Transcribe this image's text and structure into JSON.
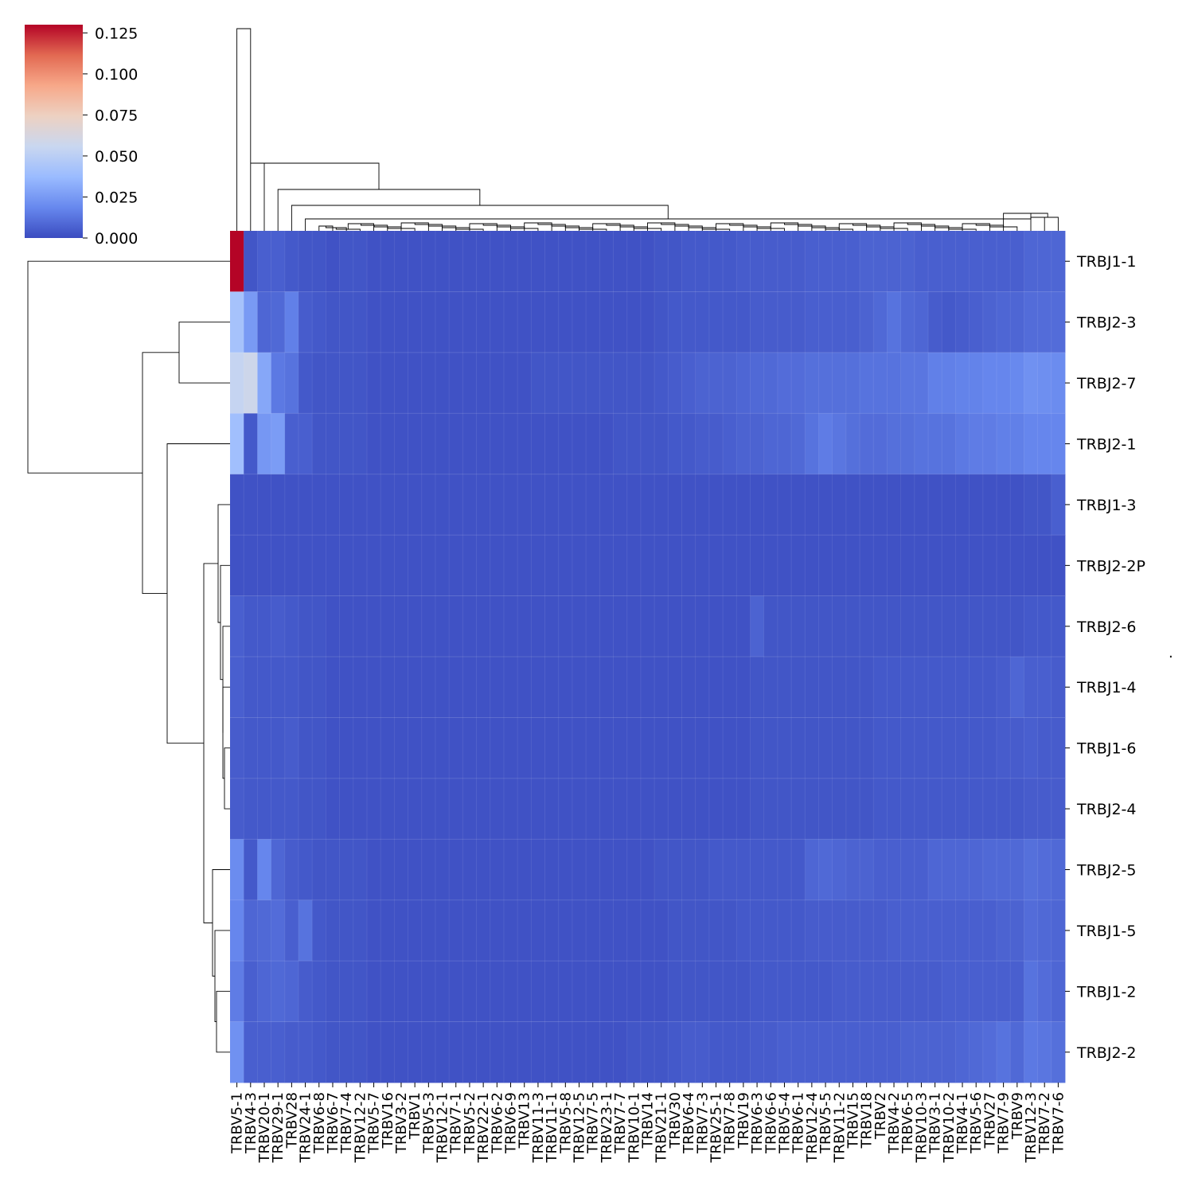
{
  "chart_data": {
    "type": "heatmap",
    "title": "",
    "xlabel": "",
    "ylabel": "",
    "colormap": "coolwarm",
    "colormap_stops": [
      "#3b4cc0",
      "#6788ee",
      "#9abbff",
      "#c9d7f0",
      "#edd1c2",
      "#f7a889",
      "#e26952",
      "#b40426"
    ],
    "vmin": 0.0,
    "vmax": 0.13,
    "colorbar_ticks": [
      "0.000",
      "0.025",
      "0.050",
      "0.075",
      "0.100",
      "0.125"
    ],
    "colorbar_tick_values": [
      0,
      0.025,
      0.05,
      0.075,
      0.1,
      0.125
    ],
    "columns": [
      "TRBV5-1",
      "TRBV4-3",
      "TRBV20-1",
      "TRBV29-1",
      "TRBV28",
      "TRBV24-1",
      "TRBV6-8",
      "TRBV6-7",
      "TRBV7-4",
      "TRBV12-2",
      "TRBV5-7",
      "TRBV16",
      "TRBV3-2",
      "TRBV1",
      "TRBV5-3",
      "TRBV12-1",
      "TRBV7-1",
      "TRBV5-2",
      "TRBV22-1",
      "TRBV6-2",
      "TRBV6-9",
      "TRBV13",
      "TRBV11-3",
      "TRBV11-1",
      "TRBV5-8",
      "TRBV12-5",
      "TRBV7-5",
      "TRBV23-1",
      "TRBV7-7",
      "TRBV10-1",
      "TRBV14",
      "TRBV21-1",
      "TRBV30",
      "TRBV6-4",
      "TRBV7-3",
      "TRBV25-1",
      "TRBV7-8",
      "TRBV19",
      "TRBV6-3",
      "TRBV6-6",
      "TRBV5-4",
      "TRBV6-1",
      "TRBV12-4",
      "TRBV5-5",
      "TRBV11-2",
      "TRBV15",
      "TRBV18",
      "TRBV2",
      "TRBV4-2",
      "TRBV6-5",
      "TRBV10-3",
      "TRBV3-1",
      "TRBV10-2",
      "TRBV4-1",
      "TRBV5-6",
      "TRBV27",
      "TRBV7-9",
      "TRBV9",
      "TRBV12-3",
      "TRBV7-2",
      "TRBV7-6"
    ],
    "rows": [
      "TRBJ1-1",
      "TRBJ2-3",
      "TRBJ2-7",
      "TRBJ2-1",
      "TRBJ1-3",
      "TRBJ2-2P",
      "TRBJ2-6",
      "TRBJ1-4",
      "TRBJ1-6",
      "TRBJ2-4",
      "TRBJ2-5",
      "TRBJ1-5",
      "TRBJ1-2",
      "TRBJ2-2"
    ],
    "values": [
      [
        0.13,
        0.003,
        0.006,
        0.006,
        0.004,
        0.003,
        0.003,
        0.002,
        0.003,
        0.003,
        0.002,
        0.002,
        0.002,
        0.002,
        0.002,
        0.002,
        0.002,
        0.002,
        0.002,
        0.002,
        0.002,
        0.002,
        0.002,
        0.002,
        0.002,
        0.002,
        0.002,
        0.002,
        0.002,
        0.002,
        0.002,
        0.003,
        0.003,
        0.004,
        0.004,
        0.004,
        0.004,
        0.005,
        0.005,
        0.005,
        0.005,
        0.005,
        0.006,
        0.006,
        0.006,
        0.006,
        0.007,
        0.007,
        0.007,
        0.007,
        0.006,
        0.006,
        0.006,
        0.006,
        0.006,
        0.006,
        0.006,
        0.006,
        0.008,
        0.008,
        0.008
      ],
      [
        0.042,
        0.025,
        0.008,
        0.009,
        0.016,
        0.005,
        0.004,
        0.003,
        0.003,
        0.003,
        0.002,
        0.002,
        0.002,
        0.002,
        0.002,
        0.002,
        0.002,
        0.002,
        0.002,
        0.002,
        0.002,
        0.002,
        0.002,
        0.002,
        0.002,
        0.002,
        0.002,
        0.002,
        0.002,
        0.002,
        0.002,
        0.003,
        0.004,
        0.004,
        0.004,
        0.004,
        0.004,
        0.004,
        0.005,
        0.005,
        0.005,
        0.005,
        0.006,
        0.006,
        0.006,
        0.006,
        0.007,
        0.009,
        0.012,
        0.009,
        0.008,
        0.005,
        0.004,
        0.005,
        0.006,
        0.007,
        0.008,
        0.008,
        0.01,
        0.01,
        0.01
      ],
      [
        0.054,
        0.058,
        0.03,
        0.014,
        0.012,
        0.004,
        0.003,
        0.003,
        0.003,
        0.003,
        0.002,
        0.002,
        0.002,
        0.002,
        0.002,
        0.002,
        0.002,
        0.002,
        0.002,
        0.002,
        0.002,
        0.002,
        0.003,
        0.003,
        0.003,
        0.003,
        0.003,
        0.003,
        0.003,
        0.003,
        0.003,
        0.004,
        0.005,
        0.006,
        0.007,
        0.007,
        0.007,
        0.008,
        0.009,
        0.009,
        0.01,
        0.01,
        0.011,
        0.011,
        0.011,
        0.011,
        0.012,
        0.012,
        0.012,
        0.013,
        0.013,
        0.016,
        0.016,
        0.017,
        0.017,
        0.018,
        0.018,
        0.019,
        0.022,
        0.021,
        0.02
      ],
      [
        0.04,
        0.004,
        0.024,
        0.026,
        0.006,
        0.006,
        0.003,
        0.003,
        0.003,
        0.003,
        0.002,
        0.002,
        0.002,
        0.002,
        0.002,
        0.002,
        0.002,
        0.002,
        0.002,
        0.002,
        0.002,
        0.002,
        0.002,
        0.002,
        0.002,
        0.002,
        0.002,
        0.002,
        0.003,
        0.003,
        0.003,
        0.003,
        0.004,
        0.004,
        0.005,
        0.005,
        0.006,
        0.007,
        0.007,
        0.008,
        0.008,
        0.009,
        0.012,
        0.015,
        0.013,
        0.011,
        0.01,
        0.01,
        0.011,
        0.011,
        0.012,
        0.012,
        0.012,
        0.014,
        0.015,
        0.015,
        0.016,
        0.016,
        0.018,
        0.018,
        0.018
      ],
      [
        0.002,
        0.002,
        0.002,
        0.002,
        0.002,
        0.002,
        0.002,
        0.002,
        0.002,
        0.002,
        0.002,
        0.002,
        0.002,
        0.002,
        0.002,
        0.002,
        0.002,
        0.002,
        0.002,
        0.002,
        0.002,
        0.002,
        0.002,
        0.002,
        0.002,
        0.002,
        0.002,
        0.002,
        0.002,
        0.002,
        0.002,
        0.002,
        0.002,
        0.002,
        0.002,
        0.002,
        0.002,
        0.002,
        0.002,
        0.002,
        0.002,
        0.002,
        0.002,
        0.002,
        0.002,
        0.002,
        0.002,
        0.002,
        0.002,
        0.002,
        0.002,
        0.002,
        0.002,
        0.002,
        0.002,
        0.002,
        0.002,
        0.002,
        0.003,
        0.003,
        0.006
      ],
      [
        0.002,
        0.002,
        0.002,
        0.002,
        0.002,
        0.002,
        0.002,
        0.002,
        0.002,
        0.002,
        0.002,
        0.002,
        0.002,
        0.002,
        0.002,
        0.002,
        0.002,
        0.002,
        0.002,
        0.002,
        0.002,
        0.002,
        0.002,
        0.002,
        0.002,
        0.002,
        0.002,
        0.002,
        0.002,
        0.002,
        0.002,
        0.002,
        0.002,
        0.002,
        0.002,
        0.002,
        0.002,
        0.002,
        0.002,
        0.002,
        0.002,
        0.002,
        0.002,
        0.002,
        0.002,
        0.002,
        0.002,
        0.002,
        0.002,
        0.002,
        0.002,
        0.002,
        0.002,
        0.002,
        0.002,
        0.002,
        0.002,
        0.002,
        0.002,
        0.002,
        0.002
      ],
      [
        0.006,
        0.004,
        0.004,
        0.005,
        0.004,
        0.003,
        0.003,
        0.002,
        0.002,
        0.002,
        0.002,
        0.002,
        0.002,
        0.002,
        0.002,
        0.002,
        0.002,
        0.002,
        0.002,
        0.002,
        0.002,
        0.002,
        0.002,
        0.002,
        0.002,
        0.002,
        0.002,
        0.002,
        0.002,
        0.002,
        0.002,
        0.002,
        0.002,
        0.002,
        0.002,
        0.002,
        0.002,
        0.002,
        0.007,
        0.003,
        0.003,
        0.003,
        0.003,
        0.003,
        0.003,
        0.003,
        0.003,
        0.003,
        0.003,
        0.003,
        0.003,
        0.003,
        0.003,
        0.003,
        0.003,
        0.003,
        0.003,
        0.003,
        0.004,
        0.004,
        0.004
      ],
      [
        0.006,
        0.004,
        0.004,
        0.004,
        0.004,
        0.003,
        0.003,
        0.002,
        0.002,
        0.002,
        0.002,
        0.002,
        0.002,
        0.002,
        0.002,
        0.002,
        0.002,
        0.002,
        0.002,
        0.002,
        0.002,
        0.002,
        0.002,
        0.002,
        0.002,
        0.002,
        0.002,
        0.002,
        0.002,
        0.002,
        0.002,
        0.002,
        0.002,
        0.002,
        0.002,
        0.002,
        0.002,
        0.002,
        0.003,
        0.003,
        0.003,
        0.003,
        0.003,
        0.003,
        0.003,
        0.003,
        0.003,
        0.004,
        0.004,
        0.004,
        0.004,
        0.004,
        0.004,
        0.004,
        0.004,
        0.004,
        0.005,
        0.008,
        0.006,
        0.006,
        0.005
      ],
      [
        0.005,
        0.004,
        0.004,
        0.004,
        0.005,
        0.003,
        0.003,
        0.002,
        0.002,
        0.002,
        0.002,
        0.002,
        0.002,
        0.002,
        0.002,
        0.002,
        0.002,
        0.002,
        0.002,
        0.002,
        0.002,
        0.002,
        0.002,
        0.002,
        0.002,
        0.002,
        0.002,
        0.002,
        0.002,
        0.002,
        0.002,
        0.002,
        0.002,
        0.002,
        0.002,
        0.002,
        0.002,
        0.002,
        0.003,
        0.003,
        0.003,
        0.003,
        0.003,
        0.003,
        0.003,
        0.003,
        0.003,
        0.004,
        0.004,
        0.004,
        0.004,
        0.004,
        0.004,
        0.004,
        0.004,
        0.004,
        0.005,
        0.005,
        0.006,
        0.005,
        0.005
      ],
      [
        0.005,
        0.004,
        0.004,
        0.004,
        0.004,
        0.003,
        0.003,
        0.002,
        0.002,
        0.002,
        0.002,
        0.002,
        0.002,
        0.002,
        0.002,
        0.002,
        0.002,
        0.002,
        0.002,
        0.002,
        0.002,
        0.002,
        0.002,
        0.002,
        0.002,
        0.002,
        0.002,
        0.002,
        0.002,
        0.002,
        0.002,
        0.002,
        0.002,
        0.002,
        0.002,
        0.002,
        0.002,
        0.002,
        0.003,
        0.003,
        0.003,
        0.003,
        0.003,
        0.003,
        0.003,
        0.003,
        0.003,
        0.004,
        0.004,
        0.004,
        0.004,
        0.004,
        0.004,
        0.004,
        0.004,
        0.004,
        0.004,
        0.004,
        0.005,
        0.005,
        0.005
      ],
      [
        0.02,
        0.004,
        0.018,
        0.008,
        0.005,
        0.004,
        0.003,
        0.003,
        0.003,
        0.003,
        0.002,
        0.002,
        0.002,
        0.002,
        0.002,
        0.002,
        0.002,
        0.002,
        0.002,
        0.002,
        0.002,
        0.002,
        0.002,
        0.002,
        0.002,
        0.002,
        0.002,
        0.002,
        0.002,
        0.002,
        0.002,
        0.003,
        0.003,
        0.003,
        0.003,
        0.004,
        0.004,
        0.004,
        0.004,
        0.004,
        0.004,
        0.004,
        0.008,
        0.009,
        0.008,
        0.007,
        0.007,
        0.006,
        0.006,
        0.006,
        0.006,
        0.008,
        0.008,
        0.008,
        0.008,
        0.009,
        0.009,
        0.009,
        0.011,
        0.01,
        0.009
      ],
      [
        0.018,
        0.008,
        0.009,
        0.01,
        0.006,
        0.012,
        0.004,
        0.003,
        0.003,
        0.003,
        0.002,
        0.002,
        0.002,
        0.002,
        0.002,
        0.002,
        0.002,
        0.002,
        0.002,
        0.002,
        0.002,
        0.002,
        0.002,
        0.002,
        0.002,
        0.002,
        0.002,
        0.002,
        0.002,
        0.002,
        0.002,
        0.002,
        0.003,
        0.003,
        0.003,
        0.003,
        0.003,
        0.004,
        0.004,
        0.004,
        0.004,
        0.004,
        0.005,
        0.005,
        0.005,
        0.005,
        0.005,
        0.005,
        0.006,
        0.006,
        0.006,
        0.006,
        0.006,
        0.006,
        0.006,
        0.006,
        0.007,
        0.007,
        0.01,
        0.009,
        0.008
      ],
      [
        0.015,
        0.006,
        0.008,
        0.009,
        0.008,
        0.005,
        0.004,
        0.003,
        0.003,
        0.003,
        0.002,
        0.002,
        0.002,
        0.002,
        0.002,
        0.002,
        0.002,
        0.002,
        0.002,
        0.002,
        0.002,
        0.002,
        0.002,
        0.002,
        0.002,
        0.002,
        0.002,
        0.002,
        0.002,
        0.002,
        0.002,
        0.002,
        0.003,
        0.003,
        0.003,
        0.003,
        0.003,
        0.003,
        0.004,
        0.004,
        0.004,
        0.004,
        0.004,
        0.004,
        0.005,
        0.005,
        0.005,
        0.005,
        0.005,
        0.005,
        0.005,
        0.005,
        0.006,
        0.006,
        0.006,
        0.006,
        0.006,
        0.006,
        0.012,
        0.01,
        0.008
      ],
      [
        0.022,
        0.006,
        0.006,
        0.006,
        0.005,
        0.005,
        0.004,
        0.003,
        0.003,
        0.003,
        0.002,
        0.002,
        0.002,
        0.002,
        0.002,
        0.002,
        0.002,
        0.002,
        0.002,
        0.002,
        0.002,
        0.002,
        0.002,
        0.002,
        0.002,
        0.002,
        0.002,
        0.002,
        0.002,
        0.003,
        0.003,
        0.003,
        0.004,
        0.005,
        0.005,
        0.004,
        0.004,
        0.004,
        0.005,
        0.005,
        0.006,
        0.006,
        0.006,
        0.006,
        0.006,
        0.006,
        0.006,
        0.006,
        0.006,
        0.007,
        0.007,
        0.007,
        0.007,
        0.008,
        0.009,
        0.01,
        0.012,
        0.009,
        0.014,
        0.013,
        0.011
      ]
    ]
  },
  "trailing_mark": "."
}
